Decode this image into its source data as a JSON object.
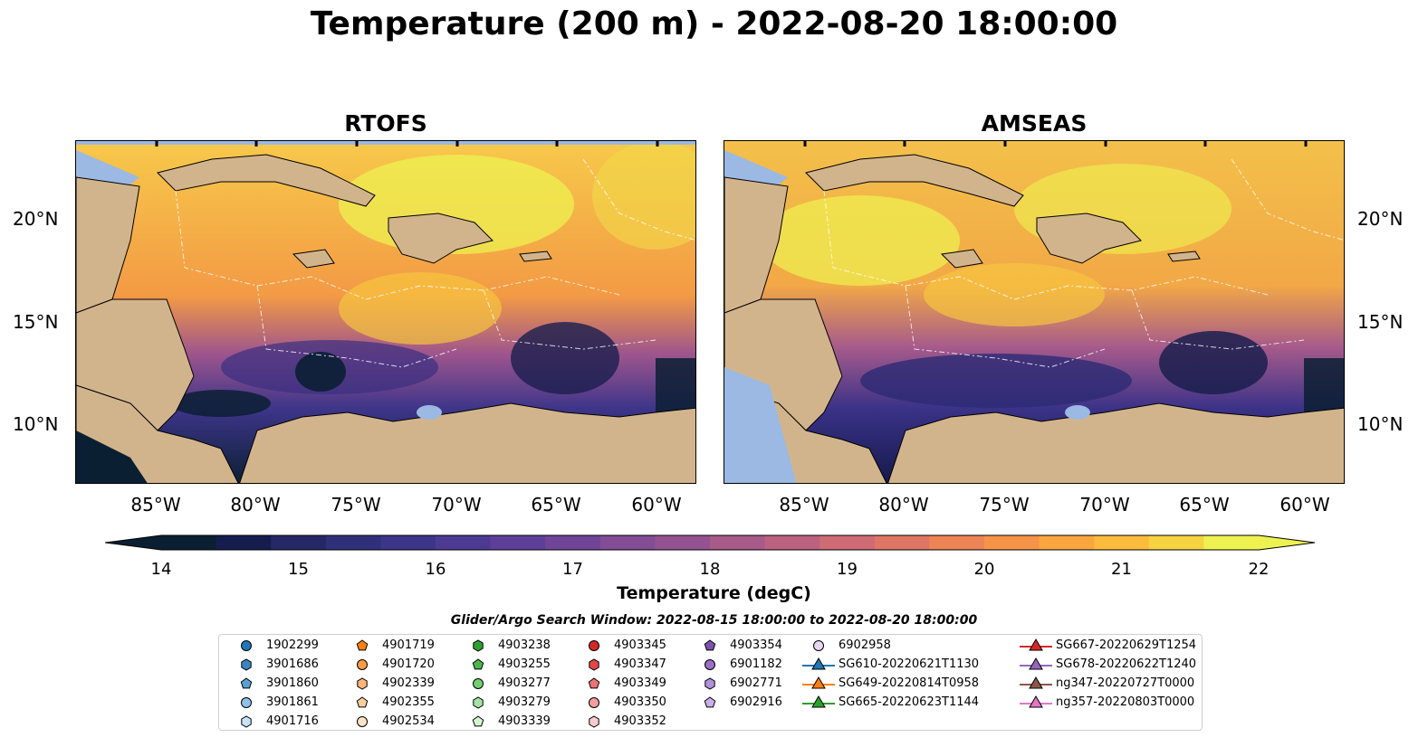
{
  "title": "Temperature (200 m) - 2022-08-20 18:00:00",
  "panels": [
    {
      "title": "RTOFS"
    },
    {
      "title": "AMSEAS"
    }
  ],
  "lat_labels": [
    "20°N",
    "15°N",
    "10°N"
  ],
  "lon_labels": [
    "85°W",
    "80°W",
    "75°W",
    "70°W",
    "65°W",
    "60°W"
  ],
  "colorbar": {
    "label": "Temperature (degC)",
    "ticks": [
      "14",
      "15",
      "16",
      "17",
      "18",
      "19",
      "20",
      "21",
      "22"
    ],
    "min": 14,
    "max": 22,
    "step": 0.5,
    "colors": [
      "#0b1f33",
      "#151d4f",
      "#252766",
      "#30307a",
      "#3d3589",
      "#4d3a94",
      "#5e3f98",
      "#704598",
      "#834c95",
      "#955290",
      "#a85a89",
      "#bc6280",
      "#ce6b74",
      "#df7665",
      "#ec8455",
      "#f59447",
      "#f9a63e",
      "#fbbb3c",
      "#f6d341",
      "#eef250"
    ]
  },
  "search_window": "Glider/Argo Search Window: 2022-08-15 18:00:00 to 2022-08-20 18:00:00",
  "legend": {
    "columns": [
      [
        {
          "label": "1902299",
          "marker": "circle",
          "color": "#1f77b4"
        },
        {
          "label": "3901686",
          "marker": "hexagon",
          "color": "#3a85c0"
        },
        {
          "label": "3901860",
          "marker": "pentagon",
          "color": "#5a9fd4"
        },
        {
          "label": "3901861",
          "marker": "circle",
          "color": "#8fc2ea"
        },
        {
          "label": "4901716",
          "marker": "hexagon",
          "color": "#c6e2f7"
        }
      ],
      [
        {
          "label": "4901719",
          "marker": "pentagon",
          "color": "#ff7f0e"
        },
        {
          "label": "4901720",
          "marker": "circle",
          "color": "#ff9a45"
        },
        {
          "label": "4902339",
          "marker": "hexagon",
          "color": "#ffb478"
        },
        {
          "label": "4902355",
          "marker": "pentagon",
          "color": "#ffcc9e"
        },
        {
          "label": "4902534",
          "marker": "circle",
          "color": "#ffe3c8"
        }
      ],
      [
        {
          "label": "4903238",
          "marker": "hexagon",
          "color": "#2ca02c"
        },
        {
          "label": "4903255",
          "marker": "pentagon",
          "color": "#4cb84c"
        },
        {
          "label": "4903277",
          "marker": "circle",
          "color": "#74cf74"
        },
        {
          "label": "4903279",
          "marker": "hexagon",
          "color": "#a4e3a4"
        },
        {
          "label": "4903339",
          "marker": "pentagon",
          "color": "#d4f4d4"
        }
      ],
      [
        {
          "label": "4903345",
          "marker": "circle",
          "color": "#d62728"
        },
        {
          "label": "4903347",
          "marker": "hexagon",
          "color": "#e04848"
        },
        {
          "label": "4903349",
          "marker": "pentagon",
          "color": "#ea7373"
        },
        {
          "label": "4903350",
          "marker": "circle",
          "color": "#f29f9f"
        },
        {
          "label": "4903352",
          "marker": "hexagon",
          "color": "#f9cccc"
        }
      ],
      [
        {
          "label": "4903354",
          "marker": "pentagon",
          "color": "#7b52ae"
        },
        {
          "label": "6901182",
          "marker": "circle",
          "color": "#9a70c9"
        },
        {
          "label": "6902771",
          "marker": "hexagon",
          "color": "#b290dc"
        },
        {
          "label": "6902916",
          "marker": "pentagon",
          "color": "#c9b0ea"
        }
      ],
      [
        {
          "label": "6902958",
          "marker": "circle",
          "color": "#e6d7f5"
        },
        {
          "label": "SG610-20220621T1130",
          "marker": "triangle",
          "color": "#1f77b4",
          "line": true
        },
        {
          "label": "SG649-20220814T0958",
          "marker": "triangle",
          "color": "#ff7f0e",
          "line": true
        },
        {
          "label": "SG665-20220623T1144",
          "marker": "triangle",
          "color": "#2ca02c",
          "line": true
        }
      ],
      [
        {
          "label": "SG667-20220629T1254",
          "marker": "triangle",
          "color": "#d62728",
          "line": true
        },
        {
          "label": "SG678-20220622T1240",
          "marker": "triangle",
          "color": "#9467bd",
          "line": true
        },
        {
          "label": "ng347-20220727T0000",
          "marker": "triangle",
          "color": "#8c564b",
          "line": true
        },
        {
          "label": "ng357-20220803T0000",
          "marker": "triangle",
          "color": "#e377c2",
          "line": true
        }
      ]
    ]
  },
  "colors": {
    "land": "#d2b48c",
    "shallow_water": "#9bb9e2",
    "warm_max": "#eef250",
    "cold_min": "#0b1f33"
  },
  "map_extent": {
    "lon": [
      -89,
      -58
    ],
    "lat": [
      7,
      24
    ]
  }
}
